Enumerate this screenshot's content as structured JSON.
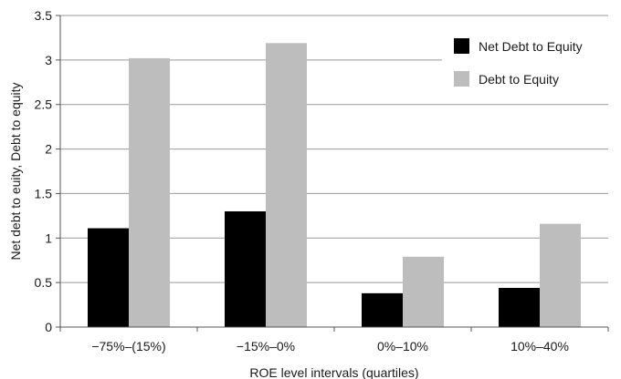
{
  "chart_data": {
    "type": "bar",
    "title": "",
    "xlabel": "ROE level intervals (quartiles)",
    "ylabel": "Net debt to euity, Debt to equity",
    "categories": [
      "−75%–(15%)",
      "−15%–0%",
      "0%–10%",
      "10%–40%"
    ],
    "series": [
      {
        "name": "Net Debt to Equity",
        "values": [
          1.11,
          1.3,
          0.38,
          0.44
        ],
        "color": "#000000"
      },
      {
        "name": "Debt to Equity",
        "values": [
          3.02,
          3.19,
          0.79,
          1.16
        ],
        "color": "#bdbdbd"
      }
    ],
    "ylim": [
      0,
      3.5
    ],
    "yticks": [
      "0",
      "0.5",
      "1",
      "1.5",
      "2",
      "2.5",
      "3",
      "3.5"
    ],
    "grid": "horizontal",
    "legend_position": "top-right"
  }
}
